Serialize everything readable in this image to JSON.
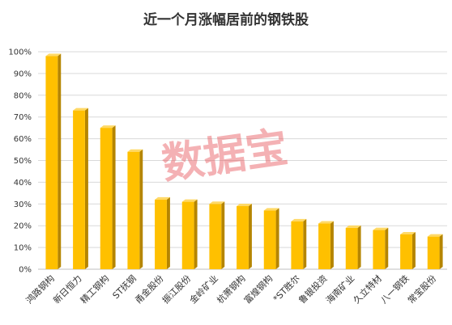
{
  "chart_data": {
    "type": "bar",
    "title": "近一个月涨幅居前的钢铁股",
    "watermark": "数据宝",
    "categories": [
      "鸿路钢构",
      "新日恒力",
      "精工钢构",
      "ST抚钢",
      "甬金股份",
      "振江股份",
      "金岭矿业",
      "杭萧钢构",
      "富煌钢构",
      "*ST胜尔",
      "鲁银投资",
      "海南矿业",
      "久立特材",
      "八一钢铁",
      "常宝股份"
    ],
    "values": [
      98,
      73,
      65,
      54,
      32,
      31,
      30,
      29,
      27,
      22,
      21,
      19,
      18,
      16,
      15
    ],
    "y_ticks": [
      "0%",
      "10%",
      "20%",
      "30%",
      "40%",
      "50%",
      "60%",
      "70%",
      "80%",
      "90%",
      "100%"
    ],
    "ylim": [
      0,
      100
    ],
    "grid": true,
    "colors": {
      "bar_front": "#ffc000",
      "bar_side": "#b58500",
      "bar_top": "#ffd966",
      "grid": "#d9d9d9",
      "axis": "#bfbfbf"
    }
  }
}
